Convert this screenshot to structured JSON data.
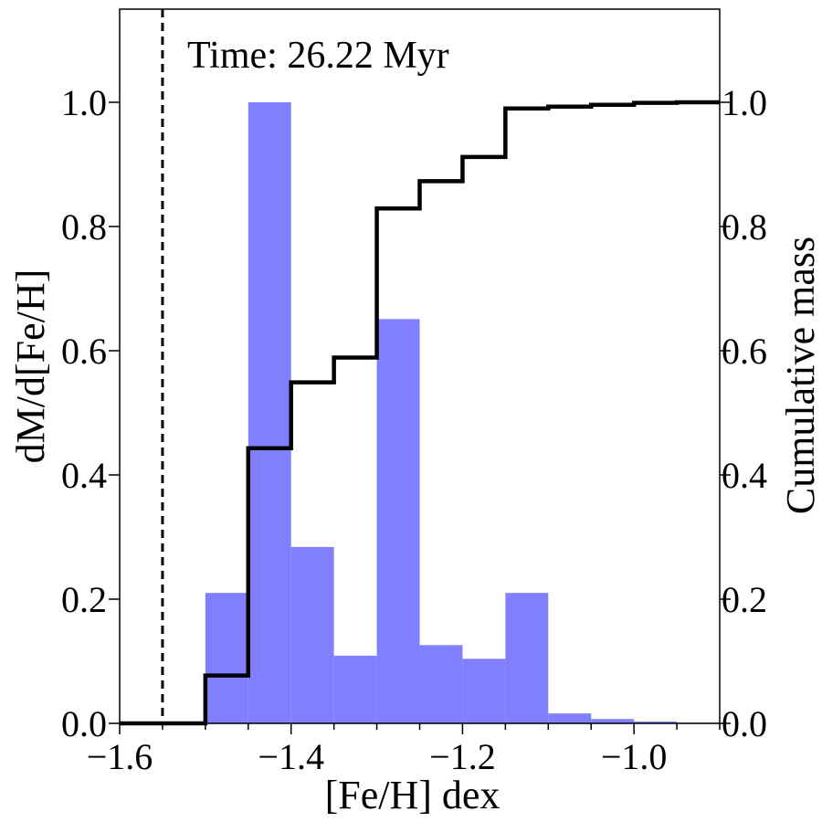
{
  "chart_data": {
    "type": "bar",
    "annotation": "Time: 26.22 Myr",
    "xlabel": "[Fe/H] dex",
    "ylabel": "dM/d[Fe/H]",
    "ylabel_right": "Cumulative mass",
    "xlim": [
      -1.6,
      -0.9
    ],
    "ylim": [
      0,
      1.15
    ],
    "ylim_right": [
      0,
      1.15
    ],
    "grid": false,
    "x_ticks": [
      -1.6,
      -1.4,
      -1.2,
      -1.0
    ],
    "x_tick_labels": [
      "−1.6",
      "−1.4",
      "−1.2",
      "−1.0"
    ],
    "y_ticks": [
      0.0,
      0.2,
      0.4,
      0.6,
      0.8,
      1.0
    ],
    "y_tick_labels": [
      "0.0",
      "0.2",
      "0.4",
      "0.6",
      "0.8",
      "1.0"
    ],
    "histogram": {
      "color": "#8080ff",
      "bin_edges": [
        -1.5,
        -1.45,
        -1.4,
        -1.35,
        -1.3,
        -1.25,
        -1.2,
        -1.15,
        -1.1,
        -1.05,
        -1.0,
        -0.95,
        -0.9
      ],
      "values": [
        0.21,
        1.0,
        0.284,
        0.109,
        0.651,
        0.126,
        0.104,
        0.21,
        0.016,
        0.007,
        0.003,
        0.001
      ]
    },
    "cumulative": {
      "color": "#000000",
      "x": [
        -1.6,
        -1.5,
        -1.45,
        -1.4,
        -1.35,
        -1.3,
        -1.25,
        -1.2,
        -1.15,
        -1.1,
        -1.05,
        -1.0,
        -0.95,
        -0.9
      ],
      "values": [
        0.0,
        0.077,
        0.443,
        0.549,
        0.589,
        0.829,
        0.873,
        0.912,
        0.99,
        0.993,
        0.996,
        0.999,
        1.0,
        1.0
      ]
    },
    "reference_line": {
      "x": -1.55,
      "style": "dashed",
      "color": "#000000"
    }
  }
}
